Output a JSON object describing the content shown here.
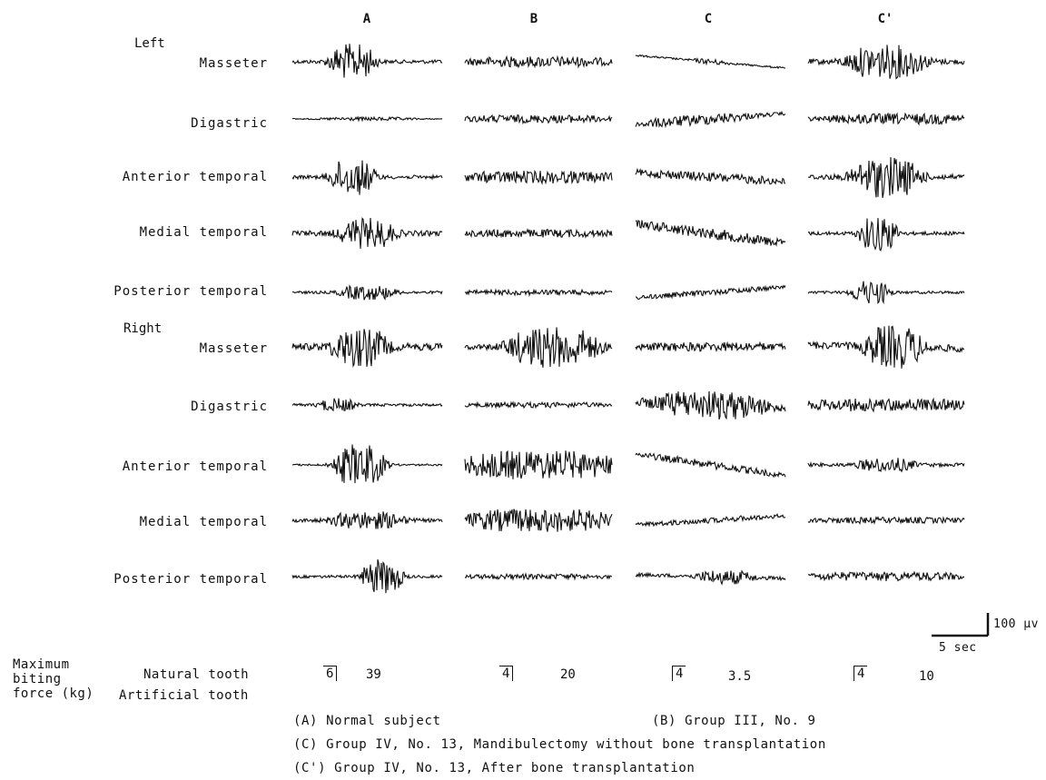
{
  "columns": [
    {
      "id": "A",
      "label": "A"
    },
    {
      "id": "B",
      "label": "B"
    },
    {
      "id": "C",
      "label": "C"
    },
    {
      "id": "C1",
      "label": "C'"
    }
  ],
  "sides": {
    "left": "Left",
    "right": "Right"
  },
  "rows": [
    {
      "label": "Masseter"
    },
    {
      "label": "Digastric"
    },
    {
      "label": "Anterior temporal"
    },
    {
      "label": "Medial temporal"
    },
    {
      "label": "Posterior temporal"
    },
    {
      "label": "Masseter"
    },
    {
      "label": "Digastric"
    },
    {
      "label": "Anterior temporal"
    },
    {
      "label": "Medial temporal"
    },
    {
      "label": "Posterior temporal"
    }
  ],
  "scale_bar": {
    "amplitude": "100 µv",
    "time": "5 sec"
  },
  "biting_force": {
    "heading": "Maximum\nbiting\nforce (kg)",
    "natural_label": "Natural tooth",
    "artificial_label": "Artificial tooth",
    "entries": [
      {
        "tooth": "6",
        "value": "39"
      },
      {
        "tooth": "4",
        "value": "20"
      },
      {
        "tooth": "4",
        "value": "3.5"
      },
      {
        "tooth": "4",
        "value": "10"
      }
    ]
  },
  "captions": {
    "a": "(A) Normal subject",
    "b": "(B) Group III, No. 9",
    "c": "(C) Group IV, No. 13, Mandibulectomy without bone transplantation",
    "c1": "(C') Group IV, No. 13, After bone transplantation"
  }
}
